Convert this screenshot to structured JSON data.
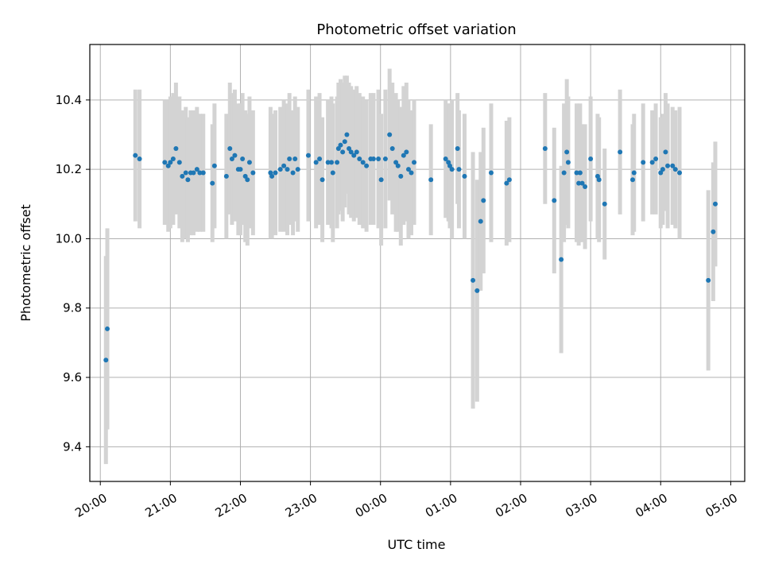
{
  "chart_data": {
    "type": "scatter",
    "title": "Photometric offset variation",
    "xlabel": "UTC time",
    "ylabel": "Photometric offset",
    "x_unit": "UTC hour (values past 24 fall after midnight)",
    "xlim": [
      19.85,
      29.2
    ],
    "ylim": [
      9.3,
      10.56
    ],
    "xticks": [
      20,
      21,
      22,
      23,
      24,
      25,
      26,
      27,
      28,
      29
    ],
    "xtick_labels": [
      "20:00",
      "21:00",
      "22:00",
      "23:00",
      "00:00",
      "01:00",
      "02:00",
      "03:00",
      "04:00",
      "05:00"
    ],
    "yticks": [
      9.4,
      9.6,
      9.8,
      10.0,
      10.2,
      10.4
    ],
    "ytick_labels": [
      "9.4",
      "9.6",
      "9.8",
      "10.0",
      "10.2",
      "10.4"
    ],
    "grid": true,
    "colors": {
      "point": "#1f77b4",
      "errorbar": "#d3d3d3",
      "grid": "#b0b0b0"
    },
    "series": [
      {
        "points": [
          [
            20.08,
            9.65,
            0.3
          ],
          [
            20.1,
            9.74,
            0.29
          ],
          [
            20.5,
            10.24,
            0.19
          ],
          [
            20.56,
            10.23,
            0.2
          ],
          [
            20.92,
            10.22,
            0.18
          ],
          [
            20.97,
            10.21,
            0.19
          ],
          [
            21.0,
            10.22,
            0.19
          ],
          [
            21.04,
            10.23,
            0.19
          ],
          [
            21.08,
            10.26,
            0.19
          ],
          [
            21.13,
            10.22,
            0.19
          ],
          [
            21.17,
            10.18,
            0.19
          ],
          [
            21.22,
            10.19,
            0.19
          ],
          [
            21.25,
            10.17,
            0.18
          ],
          [
            21.29,
            10.19,
            0.18
          ],
          [
            21.33,
            10.19,
            0.18
          ],
          [
            21.38,
            10.2,
            0.18
          ],
          [
            21.42,
            10.19,
            0.17
          ],
          [
            21.47,
            10.19,
            0.17
          ],
          [
            21.6,
            10.16,
            0.17
          ],
          [
            21.63,
            10.21,
            0.18
          ],
          [
            21.8,
            10.18,
            0.18
          ],
          [
            21.85,
            10.26,
            0.19
          ],
          [
            21.88,
            10.23,
            0.19
          ],
          [
            21.92,
            10.24,
            0.19
          ],
          [
            21.97,
            10.2,
            0.19
          ],
          [
            22.0,
            10.2,
            0.19
          ],
          [
            22.03,
            10.23,
            0.19
          ],
          [
            22.07,
            10.18,
            0.19
          ],
          [
            22.1,
            10.17,
            0.19
          ],
          [
            22.13,
            10.22,
            0.19
          ],
          [
            22.18,
            10.19,
            0.18
          ],
          [
            22.43,
            10.19,
            0.19
          ],
          [
            22.45,
            10.18,
            0.18
          ],
          [
            22.5,
            10.19,
            0.18
          ],
          [
            22.57,
            10.2,
            0.18
          ],
          [
            22.62,
            10.21,
            0.19
          ],
          [
            22.67,
            10.2,
            0.19
          ],
          [
            22.7,
            10.23,
            0.19
          ],
          [
            22.75,
            10.19,
            0.18
          ],
          [
            22.78,
            10.23,
            0.18
          ],
          [
            22.82,
            10.2,
            0.18
          ],
          [
            22.97,
            10.24,
            0.19
          ],
          [
            23.08,
            10.22,
            0.19
          ],
          [
            23.13,
            10.23,
            0.19
          ],
          [
            23.17,
            10.17,
            0.18
          ],
          [
            23.25,
            10.22,
            0.18
          ],
          [
            23.3,
            10.22,
            0.19
          ],
          [
            23.32,
            10.19,
            0.2
          ],
          [
            23.38,
            10.22,
            0.19
          ],
          [
            23.4,
            10.26,
            0.19
          ],
          [
            23.43,
            10.27,
            0.19
          ],
          [
            23.46,
            10.25,
            0.2
          ],
          [
            23.49,
            10.28,
            0.19
          ],
          [
            23.52,
            10.3,
            0.17
          ],
          [
            23.55,
            10.26,
            0.19
          ],
          [
            23.58,
            10.25,
            0.19
          ],
          [
            23.62,
            10.24,
            0.19
          ],
          [
            23.66,
            10.25,
            0.19
          ],
          [
            23.7,
            10.23,
            0.19
          ],
          [
            23.75,
            10.22,
            0.19
          ],
          [
            23.8,
            10.21,
            0.19
          ],
          [
            23.86,
            10.23,
            0.19
          ],
          [
            23.9,
            10.23,
            0.19
          ],
          [
            23.97,
            10.23,
            0.2
          ],
          [
            24.01,
            10.17,
            0.19
          ],
          [
            24.07,
            10.23,
            0.2
          ],
          [
            24.13,
            10.3,
            0.19
          ],
          [
            24.17,
            10.26,
            0.19
          ],
          [
            24.22,
            10.22,
            0.2
          ],
          [
            24.25,
            10.21,
            0.19
          ],
          [
            24.29,
            10.18,
            0.2
          ],
          [
            24.33,
            10.24,
            0.2
          ],
          [
            24.37,
            10.25,
            0.2
          ],
          [
            24.4,
            10.2,
            0.2
          ],
          [
            24.44,
            10.19,
            0.18
          ],
          [
            24.48,
            10.22,
            0.18
          ],
          [
            24.72,
            10.17,
            0.16
          ],
          [
            24.93,
            10.23,
            0.17
          ],
          [
            24.97,
            10.22,
            0.17
          ],
          [
            24.99,
            10.21,
            0.18
          ],
          [
            25.02,
            10.2,
            0.2
          ],
          [
            25.1,
            10.26,
            0.16
          ],
          [
            25.12,
            10.2,
            0.17
          ],
          [
            25.2,
            10.18,
            0.18
          ],
          [
            25.32,
            9.88,
            0.37
          ],
          [
            25.38,
            9.85,
            0.32
          ],
          [
            25.43,
            10.05,
            0.2
          ],
          [
            25.47,
            10.11,
            0.21
          ],
          [
            25.58,
            10.19,
            0.2
          ],
          [
            25.8,
            10.16,
            0.18
          ],
          [
            25.84,
            10.17,
            0.18
          ],
          [
            26.35,
            10.26,
            0.16
          ],
          [
            26.48,
            10.11,
            0.21
          ],
          [
            26.58,
            9.94,
            0.27
          ],
          [
            26.62,
            10.19,
            0.2
          ],
          [
            26.66,
            10.25,
            0.21
          ],
          [
            26.68,
            10.22,
            0.19
          ],
          [
            26.8,
            10.19,
            0.2
          ],
          [
            26.83,
            10.16,
            0.18
          ],
          [
            26.85,
            10.19,
            0.2
          ],
          [
            26.88,
            10.16,
            0.17
          ],
          [
            26.92,
            10.15,
            0.18
          ],
          [
            27.0,
            10.23,
            0.18
          ],
          [
            27.1,
            10.18,
            0.18
          ],
          [
            27.12,
            10.17,
            0.18
          ],
          [
            27.2,
            10.1,
            0.16
          ],
          [
            27.42,
            10.25,
            0.18
          ],
          [
            27.6,
            10.17,
            0.16
          ],
          [
            27.62,
            10.19,
            0.17
          ],
          [
            27.75,
            10.22,
            0.17
          ],
          [
            27.88,
            10.22,
            0.15
          ],
          [
            27.93,
            10.23,
            0.16
          ],
          [
            28.0,
            10.19,
            0.16
          ],
          [
            28.03,
            10.2,
            0.16
          ],
          [
            28.07,
            10.25,
            0.17
          ],
          [
            28.1,
            10.21,
            0.18
          ],
          [
            28.17,
            10.21,
            0.17
          ],
          [
            28.21,
            10.2,
            0.17
          ],
          [
            28.27,
            10.19,
            0.19
          ],
          [
            28.68,
            9.88,
            0.26
          ],
          [
            28.75,
            10.02,
            0.2
          ],
          [
            28.78,
            10.1,
            0.18
          ]
        ]
      }
    ]
  }
}
